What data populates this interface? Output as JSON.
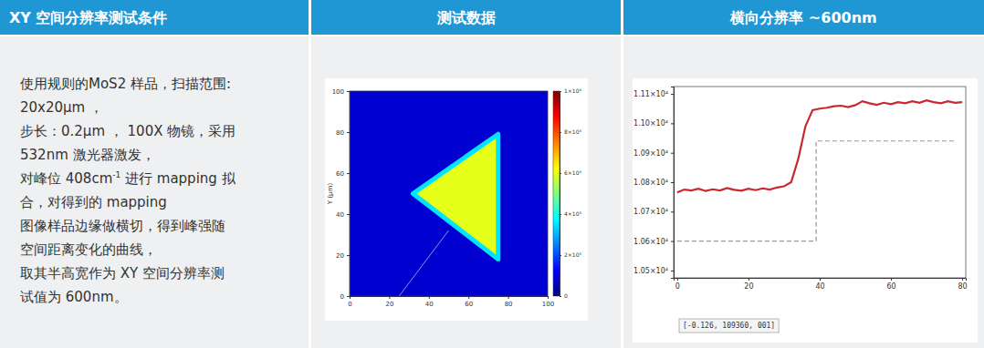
{
  "header": [
    "XY 空间分辨率测试条件",
    "测试数据",
    "横向分辨率 ~600nm"
  ],
  "conditions": {
    "lines": [
      "使用规则的MoS2 样品，扫描范围:",
      "20x20μm ，",
      "步长：0.2μm ， 100X 物镜，采用",
      "532nm 激光器激发，",
      [
        "对峰位 408cm",
        "-1",
        " 进行 mapping 拟"
      ],
      "合，对得到的 mapping",
      "图像样品边缘做横切，得到峰强随",
      "空间距离变化的曲线，",
      "取其半高宽作为 XY 空间分辨率测",
      "试值为 600nm。"
    ]
  },
  "chart_data": [
    {
      "type": "heatmap",
      "y_label": "Y (μm)",
      "xlim": [
        0,
        100
      ],
      "ylim": [
        0,
        100
      ],
      "xticks": [
        0,
        20,
        40,
        60,
        80,
        100
      ],
      "yticks": [
        0,
        20,
        40,
        60,
        80,
        100
      ],
      "background_value": 800,
      "triangle": {
        "x": [
          32,
          75,
          75
        ],
        "y": [
          50,
          79,
          18
        ],
        "interior_value": 6000,
        "edge_value": 3500
      },
      "cut_line": {
        "x": [
          25,
          50
        ],
        "y": [
          0,
          32
        ]
      },
      "colorbar_range": [
        0,
        10000
      ],
      "colorbar_ticks": [
        {
          "value": 0,
          "label": "0"
        },
        {
          "value": 2000,
          "label": "2×10³"
        },
        {
          "value": 4000,
          "label": "4×10³"
        },
        {
          "value": 6000,
          "label": "6×10³"
        },
        {
          "value": 8000,
          "label": "8×10³"
        },
        {
          "value": 10000,
          "label": "1×10⁴"
        }
      ]
    },
    {
      "type": "line",
      "xlim": [
        -1,
        81
      ],
      "ylim": [
        10475,
        11125
      ],
      "xticks": [
        0,
        20,
        40,
        60,
        80
      ],
      "yticks": [
        {
          "value": 10500,
          "label": "1.05×10⁴"
        },
        {
          "value": 10600,
          "label": "1.06×10⁴"
        },
        {
          "value": 10700,
          "label": "1.07×10⁴"
        },
        {
          "value": 10800,
          "label": "1.08×10⁴"
        },
        {
          "value": 10900,
          "label": "1.09×10⁴"
        },
        {
          "value": 11000,
          "label": "1.10×10⁴"
        },
        {
          "value": 11100,
          "label": "1.11×10⁴"
        }
      ],
      "series": [
        {
          "color": "#c8282e",
          "line_style": "solid",
          "x": [
            0,
            2,
            4,
            6,
            8,
            10,
            12,
            14,
            16,
            18,
            20,
            22,
            24,
            26,
            28,
            30,
            32,
            34,
            36,
            38,
            40,
            42,
            44,
            46,
            48,
            50,
            52,
            54,
            56,
            58,
            60,
            62,
            64,
            66,
            68,
            70,
            72,
            74,
            76,
            78,
            80
          ],
          "values": [
            10765,
            10775,
            10772,
            10778,
            10770,
            10776,
            10772,
            10780,
            10774,
            10771,
            10778,
            10773,
            10779,
            10775,
            10782,
            10786,
            10800,
            10880,
            10990,
            11045,
            11050,
            11053,
            11058,
            11060,
            11055,
            11062,
            11075,
            11068,
            11063,
            11070,
            11065,
            11072,
            11068,
            11075,
            11070,
            11078,
            11072,
            11068,
            11075,
            11070,
            11072
          ]
        },
        {
          "color": "#9a9a9a",
          "line_style": "dashed",
          "x": [
            0,
            39,
            39,
            78
          ],
          "values": [
            10600,
            10600,
            10940,
            10940
          ]
        }
      ],
      "status_text": "[-0.126, 109360, 001]"
    }
  ]
}
